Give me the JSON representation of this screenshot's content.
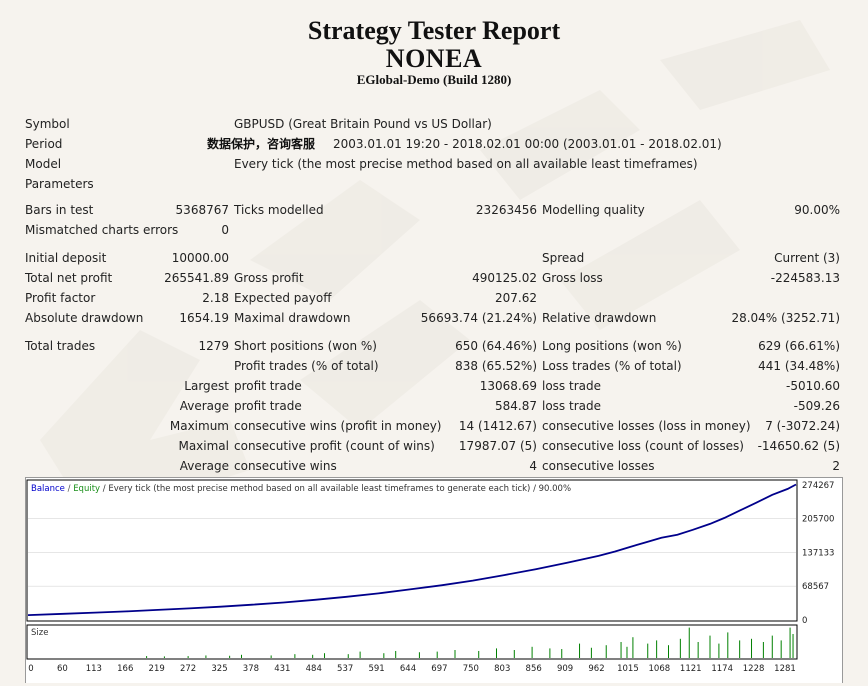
{
  "header": {
    "title": "Strategy Tester Report",
    "expert": "NONEA",
    "server": "EGlobal-Demo (Build 1280)"
  },
  "info": {
    "symbol_label": "Symbol",
    "symbol_value": "GBPUSD (Great Britain Pound vs US Dollar)",
    "period_label": "Period",
    "period_mask": "数据保护，咨询客服",
    "period_value": "2003.01.01 19:20 - 2018.02.01 00:00 (2003.01.01 - 2018.02.01)",
    "model_label": "Model",
    "model_value": "Every tick (the most precise method based on all available least timeframes)",
    "parameters_label": "Parameters"
  },
  "stats": {
    "bars_label": "Bars in test",
    "bars_value": "5368767",
    "ticks_label": "Ticks modelled",
    "ticks_value": "23263456",
    "quality_label": "Modelling quality",
    "quality_value": "90.00%",
    "mismatch_label": "Mismatched charts errors",
    "mismatch_value": "0",
    "deposit_label": "Initial deposit",
    "deposit_value": "10000.00",
    "spread_label": "Spread",
    "spread_value": "Current (3)",
    "netprofit_label": "Total net profit",
    "netprofit_value": "265541.89",
    "grossprofit_label": "Gross profit",
    "grossprofit_value": "490125.02",
    "grossloss_label": "Gross loss",
    "grossloss_value": "-224583.13",
    "pf_label": "Profit factor",
    "pf_value": "2.18",
    "payoff_label": "Expected payoff",
    "payoff_value": "207.62",
    "absdd_label": "Absolute drawdown",
    "absdd_value": "1654.19",
    "maxdd_label": "Maximal drawdown",
    "maxdd_value": "56693.74 (21.24%)",
    "reldd_label": "Relative drawdown",
    "reldd_value": "28.04% (3252.71)",
    "trades_label": "Total trades",
    "trades_value": "1279",
    "short_label": "Short positions (won %)",
    "short_value": "650 (64.46%)",
    "long_label": "Long positions (won %)",
    "long_value": "629 (66.61%)",
    "profittrades_label": "Profit trades (% of total)",
    "profittrades_value": "838 (65.52%)",
    "losstrades_label": "Loss trades (% of total)",
    "losstrades_value": "441 (34.48%)",
    "largest_label": "Largest",
    "largest_profit_label": "profit trade",
    "largest_profit_value": "13068.69",
    "largest_loss_label": "loss trade",
    "largest_loss_value": "-5010.60",
    "average_label": "Average",
    "average_profit_label": "profit trade",
    "average_profit_value": "584.87",
    "average_loss_label": "loss trade",
    "average_loss_value": "-509.26",
    "maximum_label": "Maximum",
    "maxwins_label": "consecutive wins (profit in money)",
    "maxwins_value": "14 (1412.67)",
    "maxlosses_label": "consecutive losses (loss in money)",
    "maxlosses_value": "7 (-3072.24)",
    "maximal_label": "Maximal",
    "maxprofit_label": "consecutive profit (count of wins)",
    "maxprofit_value": "17987.07 (5)",
    "maxloss_label": "consecutive loss (count of losses)",
    "maxloss_value": "-14650.62 (5)",
    "avgc_label": "Average",
    "avgwins_label": "consecutive wins",
    "avgwins_value": "4",
    "avglosses_label": "consecutive losses",
    "avglosses_value": "2"
  },
  "chart_data": {
    "type": "line",
    "legend": {
      "balance": "Balance",
      "sep1": " / ",
      "equity": "Equity",
      "rest": " / Every tick (the most precise method based on all available least timeframes to generate each tick) / 90.00%"
    },
    "colors": {
      "balance": "#0000cc",
      "equity": "#1a8f1a",
      "line": "#00008b",
      "volume": "#008000",
      "grid": "#d7d7d7"
    },
    "xlim": [
      0,
      1295
    ],
    "ylim": [
      0,
      282000
    ],
    "x_ticks": [
      "0",
      "60",
      "113",
      "166",
      "219",
      "272",
      "325",
      "378",
      "431",
      "484",
      "537",
      "591",
      "644",
      "697",
      "750",
      "803",
      "856",
      "909",
      "962",
      "1015",
      "1068",
      "1121",
      "1174",
      "1228",
      "1281"
    ],
    "y_ticks": [
      "274267",
      "205700",
      "137133",
      "68567",
      "0"
    ],
    "y_tick_values": [
      274267,
      205700,
      137133,
      68567,
      0
    ],
    "series": [
      {
        "name": "Balance",
        "x": [
          0,
          60,
          113,
          166,
          219,
          272,
          325,
          378,
          431,
          484,
          537,
          591,
          644,
          697,
          750,
          803,
          856,
          909,
          962,
          990,
          1015,
          1040,
          1068,
          1095,
          1121,
          1150,
          1174,
          1200,
          1228,
          1255,
          1281,
          1295
        ],
        "values": [
          10000,
          12500,
          15000,
          17500,
          20500,
          23500,
          27000,
          31000,
          35500,
          41000,
          47000,
          54000,
          62000,
          70500,
          80000,
          91000,
          103000,
          116000,
          130000,
          139000,
          148000,
          157000,
          167000,
          173000,
          183000,
          195000,
          207000,
          222000,
          238000,
          254000,
          266000,
          275000
        ]
      }
    ],
    "volume": {
      "label": "Size",
      "x": [
        200,
        230,
        270,
        300,
        340,
        360,
        410,
        450,
        480,
        500,
        540,
        560,
        600,
        620,
        660,
        690,
        720,
        760,
        790,
        820,
        850,
        880,
        900,
        930,
        950,
        975,
        1000,
        1010,
        1020,
        1045,
        1060,
        1080,
        1100,
        1115,
        1130,
        1150,
        1165,
        1180,
        1200,
        1220,
        1240,
        1255,
        1270,
        1285,
        1290
      ],
      "values": [
        0.06,
        0.05,
        0.06,
        0.08,
        0.07,
        0.1,
        0.08,
        0.12,
        0.1,
        0.15,
        0.12,
        0.2,
        0.15,
        0.22,
        0.18,
        0.2,
        0.25,
        0.22,
        0.3,
        0.25,
        0.35,
        0.3,
        0.28,
        0.45,
        0.32,
        0.4,
        0.5,
        0.35,
        0.65,
        0.45,
        0.55,
        0.4,
        0.6,
        0.95,
        0.5,
        0.7,
        0.45,
        0.8,
        0.55,
        0.6,
        0.5,
        0.7,
        0.55,
        0.95,
        0.75
      ]
    }
  }
}
